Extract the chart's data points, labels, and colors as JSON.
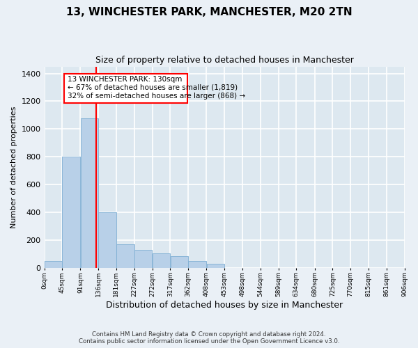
{
  "title": "13, WINCHESTER PARK, MANCHESTER, M20 2TN",
  "subtitle": "Size of property relative to detached houses in Manchester",
  "xlabel": "Distribution of detached houses by size in Manchester",
  "ylabel": "Number of detached properties",
  "bar_color": "#b8d0e8",
  "bar_edge_color": "#7fafd4",
  "background_color": "#dde8f0",
  "fig_background_color": "#eaf0f6",
  "grid_color": "#ffffff",
  "red_line_x": 130,
  "annotation_text_line1": "13 WINCHESTER PARK: 130sqm",
  "annotation_text_line2": "← 67% of detached houses are smaller (1,819)",
  "annotation_text_line3": "32% of semi-detached houses are larger (868) →",
  "footer_line1": "Contains HM Land Registry data © Crown copyright and database right 2024.",
  "footer_line2": "Contains public sector information licensed under the Open Government Licence v3.0.",
  "bin_edges": [
    0,
    45,
    91,
    136,
    181,
    227,
    272,
    317,
    362,
    408,
    453,
    498,
    544,
    589,
    634,
    680,
    725,
    770,
    815,
    861,
    906
  ],
  "bin_labels": [
    "0sqm",
    "45sqm",
    "91sqm",
    "136sqm",
    "181sqm",
    "227sqm",
    "272sqm",
    "317sqm",
    "362sqm",
    "408sqm",
    "453sqm",
    "498sqm",
    "544sqm",
    "589sqm",
    "634sqm",
    "680sqm",
    "725sqm",
    "770sqm",
    "815sqm",
    "861sqm",
    "906sqm"
  ],
  "bar_heights": [
    50,
    800,
    1075,
    400,
    170,
    130,
    105,
    85,
    50,
    30,
    0,
    0,
    0,
    0,
    0,
    0,
    0,
    0,
    0,
    0
  ],
  "ylim": [
    0,
    1450
  ],
  "yticks": [
    0,
    200,
    400,
    600,
    800,
    1000,
    1200,
    1400
  ]
}
